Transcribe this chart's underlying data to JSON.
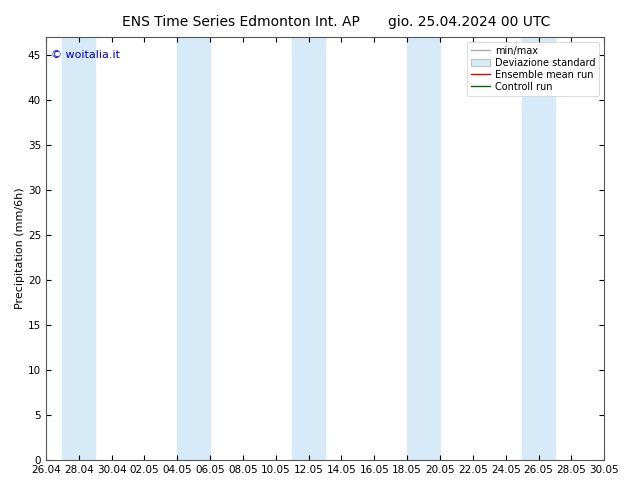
{
  "title_left": "ENS Time Series Edmonton Int. AP",
  "title_right": "gio. 25.04.2024 00 UTC",
  "ylabel": "Precipitation (mm/6h)",
  "watermark": "© woitalia.it",
  "watermark_color": "#0000cc",
  "yticks": [
    0,
    5,
    10,
    15,
    20,
    25,
    30,
    35,
    40,
    45
  ],
  "ylim": [
    0,
    47
  ],
  "xtick_labels": [
    "26.04",
    "28.04",
    "30.04",
    "02.05",
    "04.05",
    "06.05",
    "08.05",
    "10.05",
    "12.05",
    "14.05",
    "16.05",
    "18.05",
    "20.05",
    "22.05",
    "24.05",
    "26.05",
    "28.05",
    "30.05"
  ],
  "xlim_days": [
    0,
    34
  ],
  "shade_band_color": "#d6eaf8",
  "shade_bands_x": [
    [
      1.0,
      3.0
    ],
    [
      8.0,
      10.0
    ],
    [
      15.0,
      17.0
    ],
    [
      22.0,
      24.0
    ],
    [
      29.0,
      31.0
    ]
  ],
  "background_color": "#ffffff",
  "legend_labels": [
    "min/max",
    "Deviazione standard",
    "Ensemble mean run",
    "Controll run"
  ],
  "title_fontsize": 10,
  "tick_fontsize": 7.5,
  "ylabel_fontsize": 8,
  "watermark_fontsize": 8,
  "legend_fontsize": 7
}
